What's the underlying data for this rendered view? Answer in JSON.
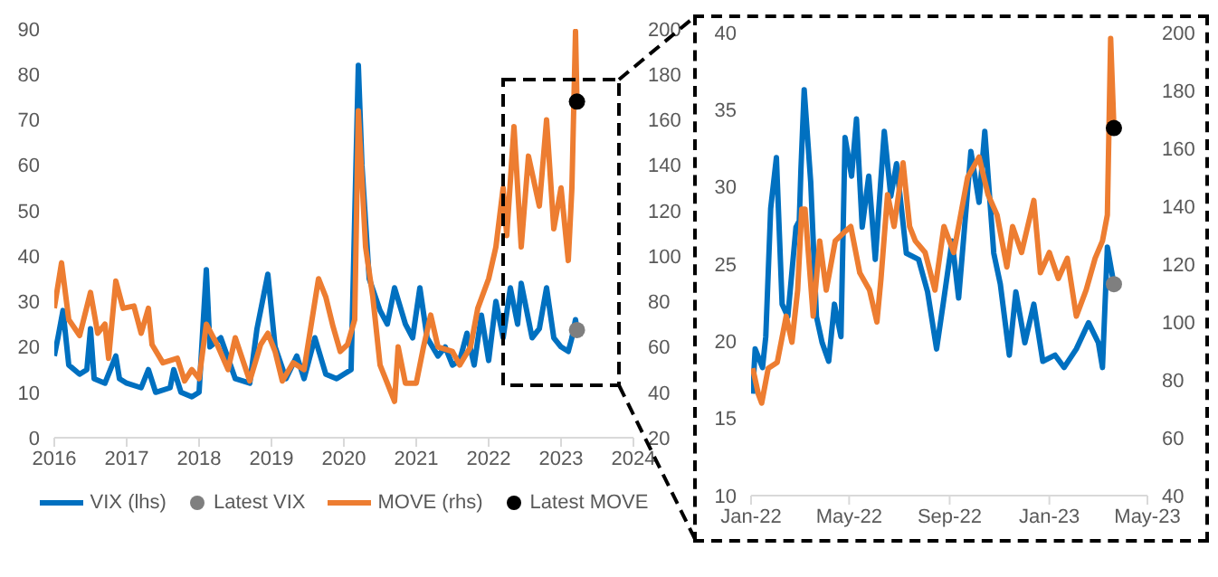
{
  "chart_data": [
    {
      "type": "line",
      "xlim": [
        2016,
        2024
      ],
      "xticks": [
        2016,
        2017,
        2018,
        2019,
        2020,
        2021,
        2022,
        2023,
        2024
      ],
      "ylim": [
        0,
        90
      ],
      "yticks": [
        0,
        10,
        20,
        30,
        40,
        50,
        60,
        70,
        80,
        90
      ],
      "y2lim": [
        20,
        200
      ],
      "y2ticks": [
        20,
        40,
        60,
        80,
        100,
        120,
        140,
        160,
        180,
        200
      ],
      "legend": "bottom",
      "series": [
        {
          "name": "VIX (lhs)",
          "color": "#0070c0",
          "x": [
            2016.0,
            2016.05,
            2016.12,
            2016.2,
            2016.35,
            2016.45,
            2016.5,
            2016.55,
            2016.7,
            2016.85,
            2016.9,
            2017.0,
            2017.2,
            2017.3,
            2017.4,
            2017.6,
            2017.65,
            2017.75,
            2017.9,
            2018.0,
            2018.1,
            2018.15,
            2018.3,
            2018.5,
            2018.7,
            2018.8,
            2018.95,
            2019.05,
            2019.2,
            2019.35,
            2019.45,
            2019.6,
            2019.75,
            2019.9,
            2020.0,
            2020.1,
            2020.2,
            2020.25,
            2020.35,
            2020.5,
            2020.6,
            2020.7,
            2020.85,
            2020.95,
            2021.05,
            2021.15,
            2021.3,
            2021.4,
            2021.5,
            2021.6,
            2021.7,
            2021.8,
            2021.9,
            2022.0,
            2022.1,
            2022.2,
            2022.3,
            2022.4,
            2022.45,
            2022.6,
            2022.7,
            2022.8,
            2022.9,
            2023.0,
            2023.1,
            2023.15,
            2023.2,
            2023.22
          ],
          "values": [
            18,
            22,
            28,
            16,
            14,
            15,
            24,
            13,
            12,
            18,
            13,
            12,
            11,
            15,
            10,
            11,
            15,
            10,
            9,
            10,
            37,
            20,
            22,
            13,
            12,
            24,
            36,
            20,
            13,
            18,
            13,
            22,
            14,
            13,
            14,
            15,
            82,
            60,
            35,
            28,
            25,
            33,
            25,
            22,
            33,
            22,
            18,
            20,
            16,
            17,
            23,
            16,
            27,
            17,
            30,
            22,
            33,
            25,
            34,
            22,
            24,
            33,
            22,
            20,
            19,
            22,
            26,
            23.7
          ]
        },
        {
          "name": "Latest VIX",
          "type": "scatter",
          "color": "#7f7f7f",
          "x": [
            2023.22
          ],
          "values": [
            23.7
          ]
        },
        {
          "name": "MOVE (rhs)",
          "axis": "y2",
          "color": "#ed7d31",
          "x": [
            2016.0,
            2016.1,
            2016.2,
            2016.35,
            2016.5,
            2016.6,
            2016.7,
            2016.75,
            2016.85,
            2016.95,
            2017.1,
            2017.2,
            2017.3,
            2017.35,
            2017.5,
            2017.7,
            2017.8,
            2017.9,
            2018.0,
            2018.1,
            2018.25,
            2018.4,
            2018.5,
            2018.7,
            2018.85,
            2018.95,
            2019.05,
            2019.15,
            2019.3,
            2019.45,
            2019.6,
            2019.65,
            2019.75,
            2019.85,
            2019.95,
            2020.05,
            2020.15,
            2020.2,
            2020.3,
            2020.4,
            2020.5,
            2020.6,
            2020.7,
            2020.75,
            2020.85,
            2021.0,
            2021.1,
            2021.2,
            2021.3,
            2021.5,
            2021.6,
            2021.75,
            2021.85,
            2022.0,
            2022.1,
            2022.2,
            2022.25,
            2022.35,
            2022.45,
            2022.55,
            2022.7,
            2022.8,
            2022.9,
            2023.0,
            2023.1,
            2023.15,
            2023.2,
            2023.22
          ],
          "values": [
            77,
            97,
            72,
            65,
            84,
            66,
            70,
            55,
            89,
            77,
            78,
            66,
            77,
            61,
            53,
            55,
            45,
            50,
            46,
            70,
            61,
            50,
            64,
            45,
            61,
            66,
            58,
            45,
            53,
            50,
            80,
            90,
            82,
            69,
            58,
            61,
            72,
            164,
            104,
            82,
            52,
            44,
            36,
            60,
            44,
            44,
            60,
            74,
            60,
            58,
            52,
            60,
            77,
            90,
            104,
            130,
            109,
            157,
            104,
            144,
            122,
            160,
            112,
            130,
            98,
            130,
            199,
            168
          ]
        },
        {
          "name": "Latest MOVE",
          "type": "scatter",
          "axis": "y2",
          "color": "#000000",
          "x": [
            2023.22
          ],
          "values": [
            168
          ]
        }
      ]
    },
    {
      "type": "line",
      "xlim": [
        "2022-01",
        "2023-05"
      ],
      "xticks": [
        {
          "value": "2022-01",
          "label": "Jan-22"
        },
        {
          "value": "2022-05",
          "label": "May-22"
        },
        {
          "value": "2022-09",
          "label": "Sep-22"
        },
        {
          "value": "2023-01",
          "label": "Jan-23"
        },
        {
          "value": "2023-05",
          "label": "May-23"
        }
      ],
      "ylim": [
        10,
        40
      ],
      "yticks": [
        10,
        15,
        20,
        25,
        30,
        35,
        40
      ],
      "y2lim": [
        40,
        200
      ],
      "y2ticks": [
        40,
        60,
        80,
        100,
        120,
        140,
        160,
        180,
        200
      ],
      "series": [
        {
          "color": "#0070c0",
          "x": [
            "2022-01-03",
            "2022-01-06",
            "2022-01-15",
            "2022-01-19",
            "2022-01-25",
            "2022-02-01",
            "2022-02-08",
            "2022-02-15",
            "2022-02-25",
            "2022-03-01",
            "2022-03-03",
            "2022-03-07",
            "2022-03-15",
            "2022-03-22",
            "2022-03-29",
            "2022-04-06",
            "2022-04-13",
            "2022-04-21",
            "2022-04-26",
            "2022-05-04",
            "2022-05-10",
            "2022-05-17",
            "2022-05-25",
            "2022-06-02",
            "2022-06-13",
            "2022-06-21",
            "2022-06-28",
            "2022-07-10",
            "2022-07-25",
            "2022-08-05",
            "2022-08-16",
            "2022-08-24",
            "2022-09-04",
            "2022-09-12",
            "2022-09-27",
            "2022-10-07",
            "2022-10-14",
            "2022-10-25",
            "2022-11-02",
            "2022-11-13",
            "2022-11-21",
            "2022-12-02",
            "2022-12-13",
            "2022-12-24",
            "2023-01-08",
            "2023-01-19",
            "2023-02-03",
            "2023-02-18",
            "2023-03-02",
            "2023-03-07",
            "2023-03-13",
            "2023-03-21"
          ],
          "values": [
            16.6,
            19.5,
            18.3,
            20.3,
            28.6,
            31.9,
            22.4,
            21.6,
            27.4,
            27.8,
            31.1,
            36.3,
            30.3,
            21.6,
            19.9,
            18.7,
            22.4,
            20.3,
            33.2,
            30.7,
            34.4,
            27.4,
            30.7,
            25.3,
            33.6,
            29.4,
            31.5,
            25.7,
            25.3,
            23.2,
            19.5,
            22.4,
            26.5,
            22.8,
            32.3,
            29,
            33.6,
            25.7,
            23.7,
            19.1,
            23.2,
            19.9,
            22.4,
            18.7,
            19.1,
            18.3,
            19.5,
            21.2,
            19.9,
            18.3,
            26.1,
            23.7
          ]
        },
        {
          "axis": "y2",
          "color": "#ed7d31",
          "x": [
            "2022-01-03",
            "2022-01-10",
            "2022-01-14",
            "2022-01-22",
            "2022-02-02",
            "2022-02-13",
            "2022-02-20",
            "2022-02-27",
            "2022-03-04",
            "2022-03-08",
            "2022-03-18",
            "2022-03-26",
            "2022-04-03",
            "2022-04-14",
            "2022-04-25",
            "2022-05-03",
            "2022-05-14",
            "2022-05-26",
            "2022-06-04",
            "2022-06-09",
            "2022-06-17",
            "2022-06-25",
            "2022-07-06",
            "2022-07-14",
            "2022-07-21",
            "2022-08-02",
            "2022-08-14",
            "2022-08-25",
            "2022-09-06",
            "2022-09-23",
            "2022-10-07",
            "2022-10-18",
            "2022-10-29",
            "2022-11-10",
            "2022-11-17",
            "2022-11-28",
            "2022-12-13",
            "2022-12-21",
            "2023-01-01",
            "2023-01-12",
            "2023-01-23",
            "2023-02-03",
            "2023-02-15",
            "2023-02-26",
            "2023-03-07",
            "2023-03-13",
            "2023-03-17",
            "2023-03-21"
          ],
          "values": [
            84,
            75,
            72,
            84,
            86,
            102,
            93,
            111,
            139,
            139,
            102,
            128,
            111,
            128,
            131,
            133,
            117,
            111,
            100,
            115,
            144,
            133,
            155,
            133,
            128,
            124,
            111,
            133,
            124,
            150,
            157,
            144,
            137,
            119,
            133,
            124,
            142,
            117,
            124,
            115,
            122,
            102,
            111,
            122,
            128,
            137,
            198,
            167
          ]
        },
        {
          "type": "scatter",
          "color": "#7f7f7f",
          "x": [
            "2023-03-21"
          ],
          "values": [
            23.7
          ]
        },
        {
          "type": "scatter",
          "axis": "y2",
          "color": "#000000",
          "x": [
            "2023-03-21"
          ],
          "values": [
            167
          ]
        }
      ]
    }
  ]
}
